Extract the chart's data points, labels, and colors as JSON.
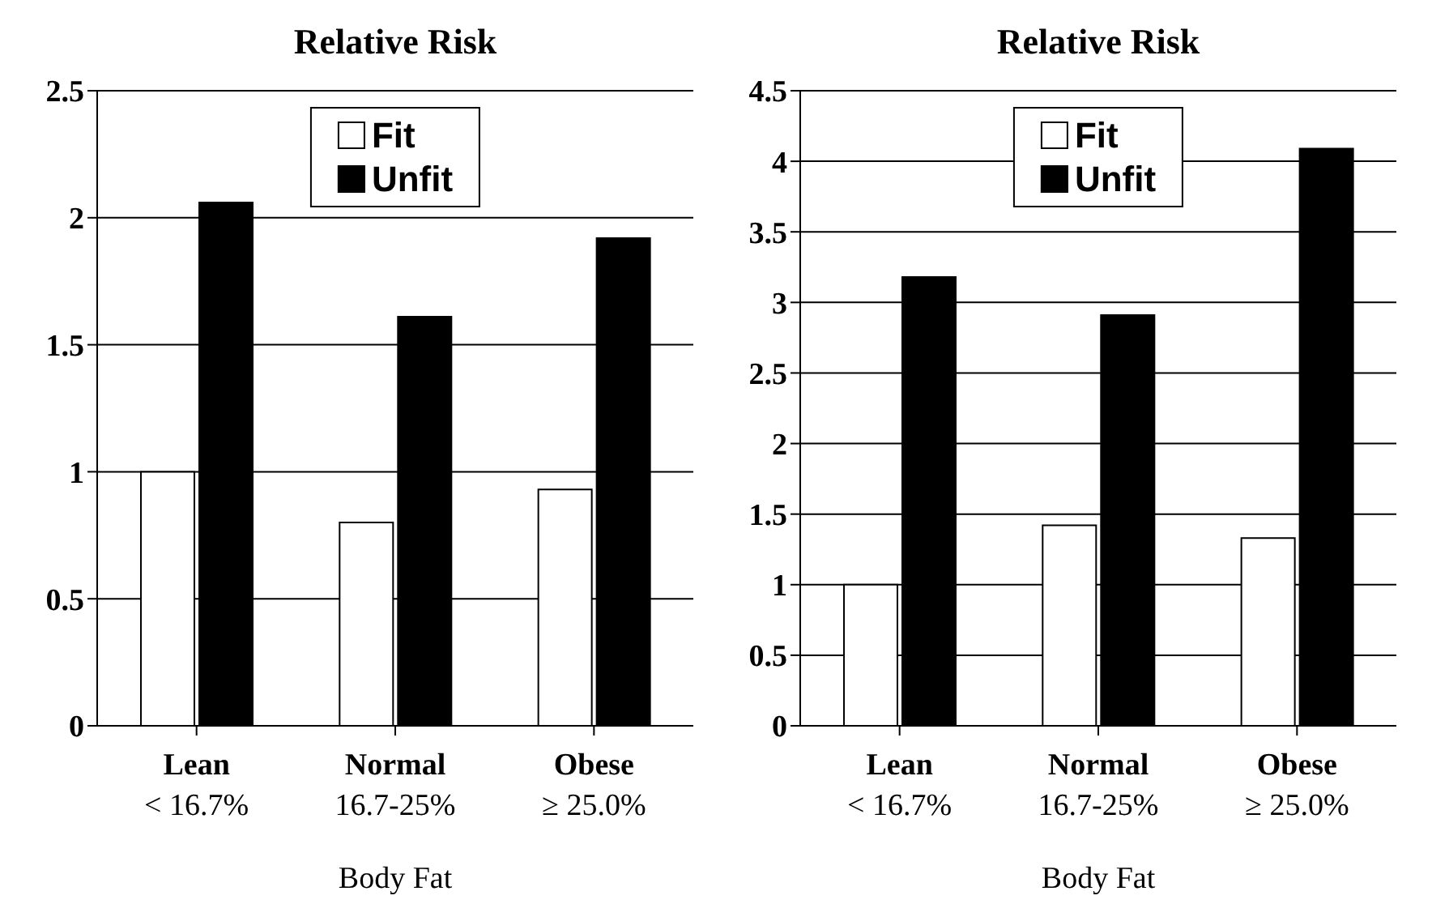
{
  "chart_data": [
    {
      "type": "bar",
      "title": "Relative Risk",
      "xlabel": "Body Fat",
      "categories": [
        "Lean\n< 16.7%",
        "Normal\n16.7-25%",
        "Obese\n≥ 25.0%"
      ],
      "series": [
        {
          "name": "Fit",
          "color": "#ffffff",
          "values": [
            1.0,
            0.8,
            0.93
          ]
        },
        {
          "name": "Unfit",
          "color": "#000000",
          "values": [
            2.06,
            1.61,
            1.92
          ]
        }
      ],
      "ylim": [
        0,
        2.5
      ],
      "yticks": [
        0,
        0.5,
        1,
        1.5,
        2,
        2.5
      ],
      "grid": "y",
      "legend": "top"
    },
    {
      "type": "bar",
      "title": "Relative Risk",
      "xlabel": "Body Fat",
      "categories": [
        "Lean\n< 16.7%",
        "Normal\n16.7-25%",
        "Obese\n≥ 25.0%"
      ],
      "series": [
        {
          "name": "Fit",
          "color": "#ffffff",
          "values": [
            1.0,
            1.42,
            1.33
          ]
        },
        {
          "name": "Unfit",
          "color": "#000000",
          "values": [
            3.18,
            2.91,
            4.09
          ]
        }
      ],
      "ylim": [
        0,
        4.5
      ],
      "yticks": [
        0,
        0.5,
        1,
        1.5,
        2,
        2.5,
        3,
        3.5,
        4,
        4.5
      ],
      "grid": "y",
      "legend": "top"
    }
  ]
}
